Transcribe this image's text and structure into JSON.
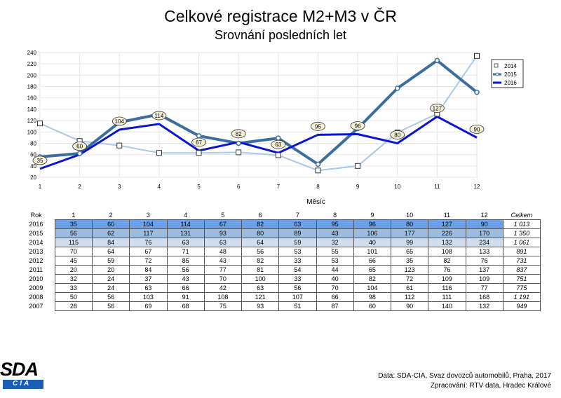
{
  "title": "Celkové registrace M2+M3 v ČR",
  "subtitle": "Srovnání posledních let",
  "chart_data": {
    "type": "line",
    "title": "Celkové registrace M2+M3 v ČR",
    "subtitle": "Srovnání posledních let",
    "xlabel": "Měsíc",
    "ylabel": "",
    "x": [
      1,
      2,
      3,
      4,
      5,
      6,
      7,
      8,
      9,
      10,
      11,
      12
    ],
    "ylim": [
      20,
      240
    ],
    "yticks": [
      20,
      40,
      60,
      80,
      100,
      120,
      140,
      160,
      180,
      200,
      220,
      240
    ],
    "grid": true,
    "legend": "top-right",
    "series": [
      {
        "name": "2014",
        "color": "#a8c8e8",
        "marker": "square",
        "values": [
          115,
          84,
          76,
          63,
          63,
          64,
          59,
          32,
          40,
          99,
          132,
          234
        ]
      },
      {
        "name": "2015",
        "color": "#3b6e9e",
        "marker": "circle",
        "values": [
          56,
          62,
          117,
          131,
          93,
          80,
          89,
          43,
          106,
          177,
          226,
          170
        ]
      },
      {
        "name": "2016",
        "color": "#0a14d2",
        "marker": "none",
        "labels": true,
        "values": [
          35,
          60,
          104,
          114,
          67,
          82,
          63,
          95,
          96,
          80,
          127,
          90
        ]
      }
    ]
  },
  "table": {
    "header": [
      "Rok",
      "1",
      "2",
      "3",
      "4",
      "5",
      "6",
      "7",
      "8",
      "9",
      "10",
      "11",
      "12",
      "Celkem"
    ],
    "rows": [
      {
        "year": "2016",
        "cells": [
          "35",
          "60",
          "104",
          "114",
          "67",
          "82",
          "63",
          "95",
          "96",
          "80",
          "127",
          "90"
        ],
        "total": "1 013",
        "bg": "#6aa0e6"
      },
      {
        "year": "2015",
        "cells": [
          "56",
          "62",
          "117",
          "131",
          "93",
          "80",
          "89",
          "43",
          "106",
          "177",
          "226",
          "170"
        ],
        "total": "1 350",
        "bg": "#9dbde0"
      },
      {
        "year": "2014",
        "cells": [
          "115",
          "84",
          "76",
          "63",
          "63",
          "64",
          "59",
          "32",
          "40",
          "99",
          "132",
          "234"
        ],
        "total": "1 061",
        "bg": "#cfddee"
      },
      {
        "year": "2013",
        "cells": [
          "70",
          "64",
          "67",
          "71",
          "48",
          "56",
          "53",
          "55",
          "101",
          "65",
          "108",
          "133"
        ],
        "total": "891",
        "bg": ""
      },
      {
        "year": "2012",
        "cells": [
          "45",
          "59",
          "72",
          "85",
          "43",
          "82",
          "33",
          "53",
          "66",
          "35",
          "82",
          "76"
        ],
        "total": "731",
        "bg": ""
      },
      {
        "year": "2011",
        "cells": [
          "20",
          "20",
          "84",
          "56",
          "77",
          "81",
          "54",
          "44",
          "65",
          "123",
          "76",
          "137"
        ],
        "total": "837",
        "bg": ""
      },
      {
        "year": "2010",
        "cells": [
          "32",
          "24",
          "37",
          "43",
          "70",
          "100",
          "33",
          "40",
          "82",
          "72",
          "109",
          "109"
        ],
        "total": "751",
        "bg": ""
      },
      {
        "year": "2009",
        "cells": [
          "33",
          "24",
          "63",
          "66",
          "42",
          "63",
          "56",
          "70",
          "104",
          "61",
          "116",
          "77"
        ],
        "total": "775",
        "bg": ""
      },
      {
        "year": "2008",
        "cells": [
          "50",
          "56",
          "103",
          "91",
          "108",
          "121",
          "107",
          "66",
          "98",
          "112",
          "111",
          "168"
        ],
        "total": "1 191",
        "bg": ""
      },
      {
        "year": "2007",
        "cells": [
          "28",
          "56",
          "69",
          "68",
          "75",
          "93",
          "51",
          "87",
          "60",
          "90",
          "140",
          "132"
        ],
        "total": "949",
        "bg": ""
      }
    ]
  },
  "logo": {
    "top": "SDA",
    "sub": "CIA"
  },
  "source": {
    "line1": "Data: SDA-CIA, Svaz dovozců automobilů, Praha, 2017",
    "line2": "Zpracování: RTV data, Hradec Králové"
  }
}
